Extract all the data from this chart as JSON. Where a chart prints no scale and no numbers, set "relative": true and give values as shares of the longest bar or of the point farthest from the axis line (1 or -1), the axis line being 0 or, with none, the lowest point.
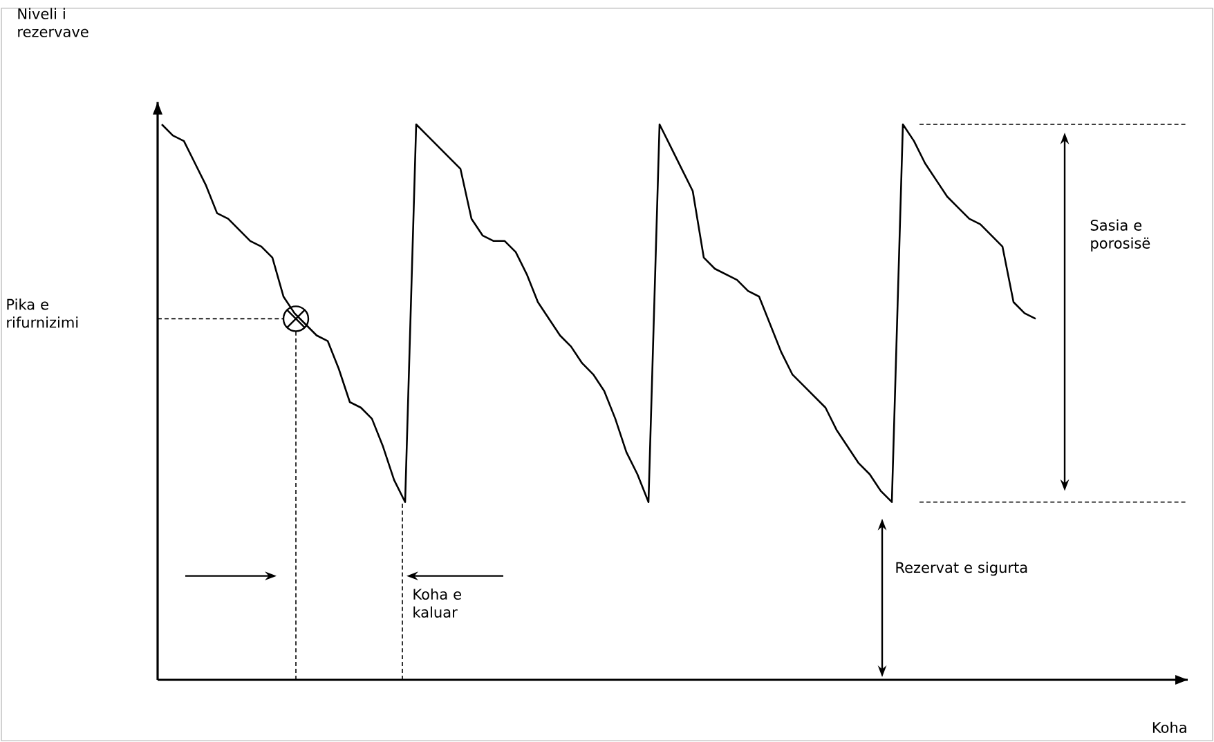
{
  "chart_data": {
    "type": "line",
    "relative": true,
    "tick_labels": false,
    "annotations": [
      "Pika e rifurnizimi",
      "Koha e kaluar",
      "Sasia e porosisë",
      "Rezervat e sigurta",
      "Niveli i rezervave",
      "Koha"
    ],
    "categories": [
      null,
      null,
      null,
      null,
      null,
      null,
      null,
      null,
      null,
      null,
      null,
      null,
      null,
      null,
      null,
      null,
      null,
      null,
      null,
      null,
      null,
      null,
      null,
      null,
      null,
      null,
      null,
      null,
      null,
      null,
      null,
      null,
      null,
      null,
      null,
      null,
      null,
      null,
      null,
      null,
      null,
      null,
      null,
      null,
      null,
      null,
      null,
      null,
      null,
      null,
      null,
      null,
      null,
      null,
      null,
      null,
      null,
      null,
      null,
      null,
      null,
      null,
      null,
      null,
      null,
      null,
      null,
      null,
      null,
      null,
      null,
      null,
      null,
      null,
      null,
      null,
      null,
      null,
      null,
      null
    ],
    "series": [
      {
        "color": "#000000",
        "values": [
          1.0,
          0.98,
          0.97,
          0.93,
          0.89,
          0.84,
          0.83,
          0.81,
          0.79,
          0.78,
          0.76,
          0.69,
          0.66,
          0.64,
          0.62,
          0.61,
          0.56,
          0.5,
          0.49,
          0.47,
          0.42,
          0.36,
          0.32,
          1.0,
          0.98,
          0.96,
          0.94,
          0.92,
          0.83,
          0.8,
          0.79,
          0.79,
          0.77,
          0.73,
          0.68,
          0.65,
          0.62,
          0.6,
          0.57,
          0.55,
          0.52,
          0.47,
          0.41,
          0.37,
          0.32,
          1.0,
          0.96,
          0.92,
          0.88,
          0.76,
          0.74,
          0.73,
          0.72,
          0.7,
          0.69,
          0.64,
          0.59,
          0.55,
          0.53,
          0.51,
          0.49,
          0.45,
          0.42,
          0.39,
          0.37,
          0.34,
          0.32,
          1.0,
          0.97,
          0.93,
          0.9,
          0.87,
          0.85,
          0.83,
          0.82,
          0.8,
          0.78,
          0.68,
          0.66,
          0.65
        ]
      }
    ],
    "ref_lines": [
      {
        "axis": "y",
        "value": 0.65,
        "label": null,
        "color": "#000000",
        "line_style": "dashed"
      },
      {
        "axis": "y",
        "value": 1.0,
        "label": null,
        "color": "#000000",
        "line_style": "dashed"
      },
      {
        "axis": "y",
        "value": 0.32,
        "label": null,
        "color": "#000000",
        "line_style": "dashed"
      }
    ]
  }
}
